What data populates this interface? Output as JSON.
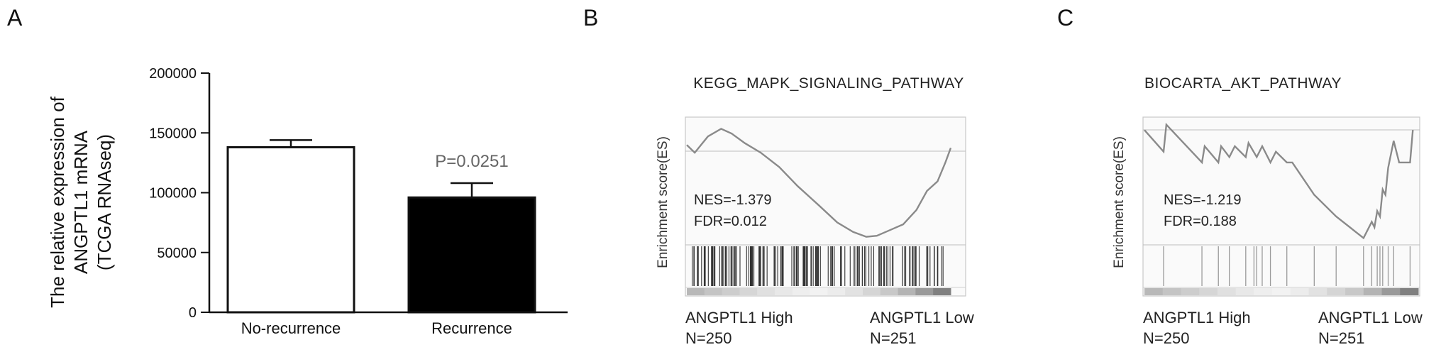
{
  "chart_data": [
    {
      "panel": "A",
      "type": "bar",
      "ylabel_lines": [
        "The relative expression of",
        "ANGPTL1 mRNA",
        "(TCGA RNAseq)"
      ],
      "ylim": [
        0,
        200000
      ],
      "yticks": [
        "0",
        "50000",
        "100000",
        "150000",
        "200000"
      ],
      "categories": [
        "No-recurrence",
        "Recurrence"
      ],
      "values": [
        138000,
        96000
      ],
      "errors": [
        6000,
        12000
      ],
      "bar_fill": [
        "#ffffff",
        "#000000"
      ],
      "annotation": "P=0.0251"
    },
    {
      "panel": "B",
      "type": "line",
      "title": "KEGG_MAPK_SIGNALING_PATHWAY",
      "ylabel": "Enrichment score(ES)",
      "stats": [
        "NES=-1.379",
        "FDR=0.012"
      ],
      "groups": [
        {
          "label": "ANGPTL1 High",
          "n": "N=250"
        },
        {
          "label": "ANGPTL1 Low",
          "n": "N=251"
        }
      ],
      "es_curve_x": [
        0,
        0.03,
        0.08,
        0.13,
        0.17,
        0.22,
        0.28,
        0.35,
        0.42,
        0.5,
        0.57,
        0.63,
        0.68,
        0.72,
        0.77,
        0.82,
        0.87,
        0.91,
        0.95,
        0.98,
        1.0
      ],
      "es_curve_y": [
        0.03,
        -0.05,
        0.12,
        0.2,
        0.15,
        0.05,
        -0.05,
        -0.2,
        -0.4,
        -0.6,
        -0.78,
        -0.88,
        -0.93,
        -0.92,
        -0.86,
        -0.8,
        -0.65,
        -0.45,
        -0.35,
        -0.15,
        0.0
      ],
      "ylim": [
        -1.0,
        0.3
      ]
    },
    {
      "panel": "C",
      "type": "line",
      "title": "BIOCARTA_AKT_PATHWAY",
      "ylabel": "Enrichment score(ES)",
      "stats": [
        "NES=-1.219",
        "FDR=0.188"
      ],
      "groups": [
        {
          "label": "ANGPTL1 High",
          "n": "N=250"
        },
        {
          "label": "ANGPTL1 Low",
          "n": "N=251"
        }
      ],
      "es_curve_x": [
        0,
        0.07,
        0.08,
        0.21,
        0.22,
        0.27,
        0.28,
        0.31,
        0.33,
        0.37,
        0.38,
        0.41,
        0.43,
        0.46,
        0.48,
        0.52,
        0.54,
        0.62,
        0.7,
        0.8,
        0.83,
        0.84,
        0.85,
        0.86,
        0.87,
        0.88,
        0.89,
        0.91,
        0.93,
        0.97,
        0.98
      ],
      "es_curve_y": [
        0.0,
        -0.2,
        0.05,
        -0.3,
        -0.15,
        -0.3,
        -0.15,
        -0.25,
        -0.15,
        -0.25,
        -0.12,
        -0.25,
        -0.15,
        -0.3,
        -0.2,
        -0.3,
        -0.3,
        -0.6,
        -0.8,
        -1.0,
        -0.85,
        -0.9,
        -0.75,
        -0.8,
        -0.55,
        -0.6,
        -0.35,
        -0.1,
        -0.3,
        -0.3,
        0.0
      ],
      "ylim": [
        -1.05,
        0.1
      ]
    }
  ]
}
